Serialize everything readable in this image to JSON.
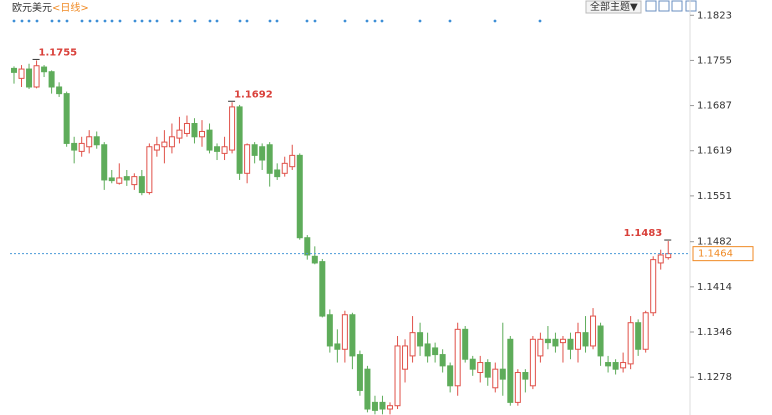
{
  "chart_data": {
    "type": "candlestick",
    "title": "欧元美元",
    "subtitle": "<日线>",
    "button": "全部主题▼",
    "ylim": [
      1.1221,
      1.1846
    ],
    "yticks": [
      1.1823,
      1.1755,
      1.1687,
      1.1619,
      1.1551,
      1.1482,
      1.1414,
      1.1346,
      1.1278
    ],
    "up_color": "#e0524a",
    "down_color": "#5eac5a",
    "price_line_color": "#4a9ad8",
    "label_color": "#f08a24",
    "annotation_color": "#d9403a",
    "annotations": [
      1.1755,
      1.1692,
      1.1483
    ],
    "open": [
      1.1743,
      1.1728,
      1.1742,
      1.1715,
      1.1745,
      1.1738,
      1.1715,
      1.1705,
      1.163,
      1.1618,
      1.1625,
      1.164,
      1.1628,
      1.1578,
      1.157,
      1.158,
      1.1568,
      1.158,
      1.1556,
      1.162,
      1.1625,
      1.1625,
      1.1638,
      1.1645,
      1.166,
      1.164,
      1.165,
      1.1625,
      1.1615,
      1.162,
      1.1685,
      1.1585,
      1.1628,
      1.1625,
      1.1628,
      1.159,
      1.1585,
      1.1595,
      1.1612,
      1.1488,
      1.146,
      1.1452,
      1.1372,
      1.1328,
      1.132,
      1.1372,
      1.1312,
      1.129,
      1.124,
      1.124,
      1.123,
      1.1235,
      1.129,
      1.131,
      1.1345,
      1.1328,
      1.1322,
      1.1312,
      1.1295,
      1.1265,
      1.135,
      1.1305,
      1.1285,
      1.13,
      1.1262,
      1.129,
      1.1335,
      1.124,
      1.1285,
      1.1265,
      1.131,
      1.1335,
      1.1335,
      1.133,
      1.1335,
      1.132,
      1.1345,
      1.1325,
      1.1355,
      1.13,
      1.13,
      1.1292,
      1.1298,
      1.136,
      1.132,
      1.1375,
      1.145,
      1.1458
    ],
    "high": [
      1.1746,
      1.1748,
      1.175,
      1.1755,
      1.1748,
      1.174,
      1.1722,
      1.1708,
      1.164,
      1.164,
      1.165,
      1.1648,
      1.1632,
      1.159,
      1.16,
      1.159,
      1.1585,
      1.159,
      1.163,
      1.164,
      1.165,
      1.166,
      1.167,
      1.1672,
      1.1668,
      1.1665,
      1.166,
      1.163,
      1.164,
      1.1692,
      1.1688,
      1.163,
      1.1632,
      1.163,
      1.1632,
      1.16,
      1.161,
      1.1628,
      1.1615,
      1.1492,
      1.1475,
      1.1456,
      1.138,
      1.135,
      1.1378,
      1.1375,
      1.1318,
      1.1295,
      1.125,
      1.125,
      1.124,
      1.134,
      1.1335,
      1.137,
      1.136,
      1.1345,
      1.133,
      1.132,
      1.13,
      1.136,
      1.1355,
      1.131,
      1.131,
      1.1305,
      1.13,
      1.136,
      1.134,
      1.129,
      1.129,
      1.134,
      1.1345,
      1.1355,
      1.1345,
      1.134,
      1.1345,
      1.136,
      1.137,
      1.1382,
      1.136,
      1.131,
      1.1305,
      1.1315,
      1.137,
      1.1365,
      1.1378,
      1.146,
      1.147,
      1.1483
    ],
    "low": [
      1.172,
      1.1715,
      1.1712,
      1.1713,
      1.173,
      1.1705,
      1.17,
      1.1625,
      1.16,
      1.161,
      1.1615,
      1.1622,
      1.156,
      1.157,
      1.1568,
      1.1566,
      1.156,
      1.1552,
      1.1553,
      1.161,
      1.16,
      1.1615,
      1.163,
      1.164,
      1.163,
      1.1625,
      1.1615,
      1.1605,
      1.1605,
      1.1615,
      1.1575,
      1.157,
      1.16,
      1.159,
      1.1565,
      1.1575,
      1.158,
      1.159,
      1.1485,
      1.1455,
      1.1448,
      1.1368,
      1.1315,
      1.13,
      1.13,
      1.129,
      1.125,
      1.1225,
      1.1222,
      1.1222,
      1.1222,
      1.123,
      1.127,
      1.13,
      1.131,
      1.13,
      1.13,
      1.1285,
      1.1255,
      1.125,
      1.13,
      1.128,
      1.127,
      1.1265,
      1.1255,
      1.125,
      1.1235,
      1.1235,
      1.1255,
      1.126,
      1.13,
      1.132,
      1.1315,
      1.13,
      1.1305,
      1.13,
      1.1315,
      1.132,
      1.1295,
      1.1285,
      1.1282,
      1.1285,
      1.129,
      1.131,
      1.1315,
      1.137,
      1.144,
      1.1455
    ],
    "close": [
      1.1737,
      1.1742,
      1.1715,
      1.1747,
      1.1738,
      1.1715,
      1.1705,
      1.163,
      1.162,
      1.163,
      1.164,
      1.1628,
      1.1575,
      1.1574,
      1.1578,
      1.1575,
      1.158,
      1.1556,
      1.1625,
      1.1628,
      1.1632,
      1.164,
      1.165,
      1.166,
      1.164,
      1.1648,
      1.162,
      1.1618,
      1.1625,
      1.1685,
      1.1585,
      1.1628,
      1.1612,
      1.1605,
      1.1585,
      1.158,
      1.16,
      1.1612,
      1.1488,
      1.1462,
      1.145,
      1.137,
      1.1325,
      1.132,
      1.1372,
      1.131,
      1.1258,
      1.123,
      1.1228,
      1.123,
      1.1235,
      1.1325,
      1.1325,
      1.1345,
      1.1325,
      1.131,
      1.1312,
      1.1295,
      1.1265,
      1.135,
      1.1305,
      1.129,
      1.13,
      1.1278,
      1.129,
      1.1275,
      1.124,
      1.1285,
      1.1275,
      1.1335,
      1.1335,
      1.133,
      1.1325,
      1.1335,
      1.132,
      1.1345,
      1.1325,
      1.137,
      1.131,
      1.1295,
      1.129,
      1.13,
      1.136,
      1.132,
      1.1375,
      1.1455,
      1.1462,
      1.1464
    ]
  }
}
